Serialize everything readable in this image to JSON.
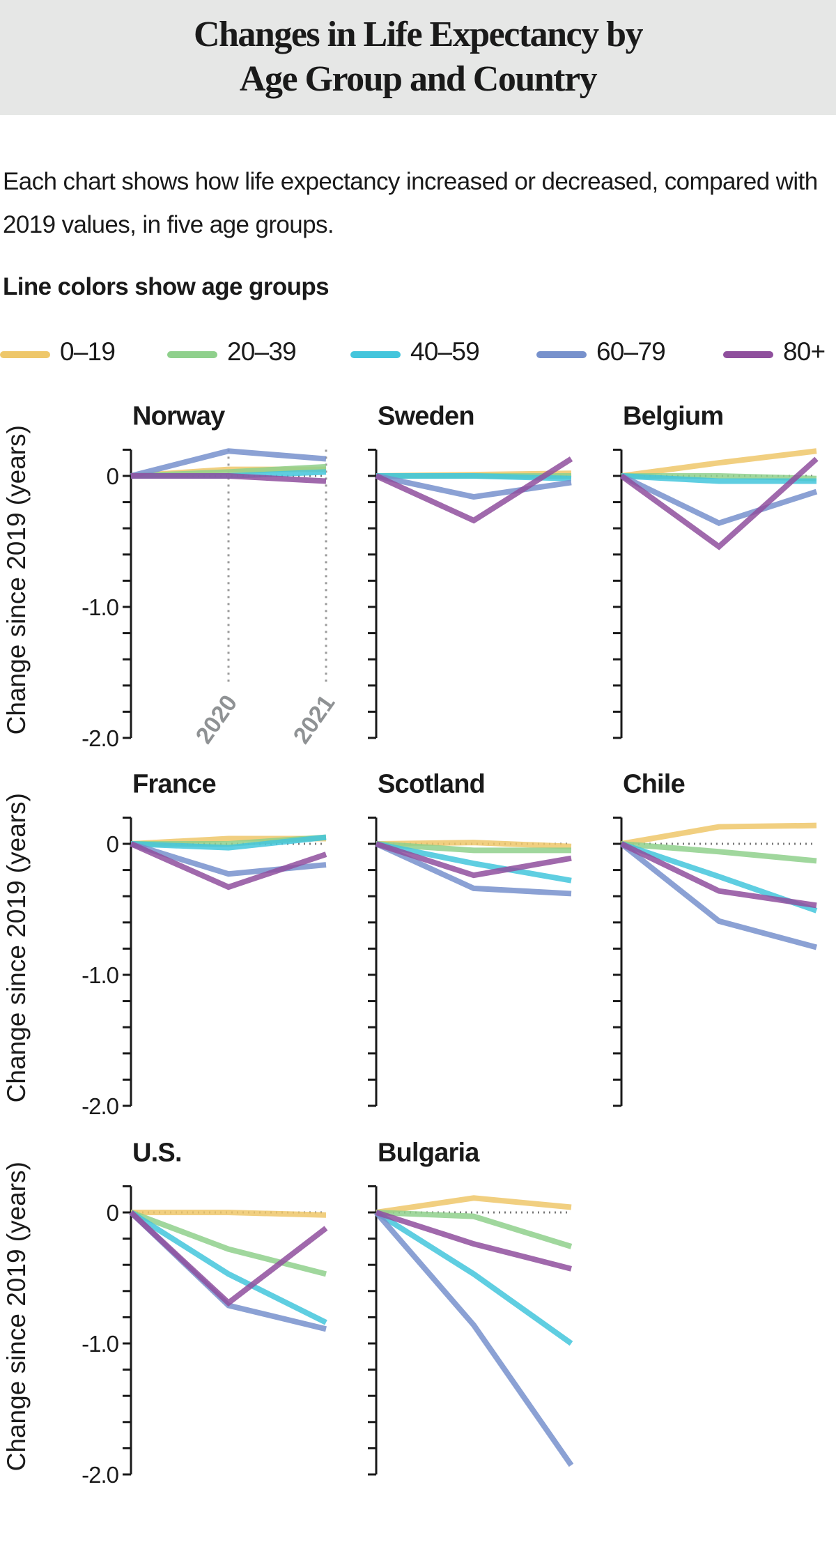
{
  "header": {
    "title_line1": "Changes in Life Expectancy by",
    "title_line2": "Age Group and Country"
  },
  "subtitle": "Each chart shows how life expectancy increased or decreased, compared with 2019 values, in five age groups.",
  "legend": {
    "heading": "Line colors show age groups",
    "items": [
      {
        "label": "0–19",
        "color": "#eec76a"
      },
      {
        "label": "20–39",
        "color": "#8fd08c"
      },
      {
        "label": "40–59",
        "color": "#43c5dc"
      },
      {
        "label": "60–79",
        "color": "#7791cc"
      },
      {
        "label": "80+",
        "color": "#8f4f9d"
      }
    ]
  },
  "chart_data": {
    "type": "line",
    "x": [
      2019,
      2020,
      2021
    ],
    "x_tick_labels": [
      "2020",
      "2021"
    ],
    "ylabel": "Change since 2019 (years)",
    "ylim": [
      -2.0,
      0.2
    ],
    "y_tick_labels": [
      "0",
      "-1.0",
      "-2.0"
    ],
    "reference_line": 0,
    "panels": [
      {
        "title": "Norway",
        "series": [
          {
            "name": "0–19",
            "values": [
              0,
              0.05,
              0.05
            ]
          },
          {
            "name": "20–39",
            "values": [
              0,
              0.03,
              0.07
            ]
          },
          {
            "name": "40–59",
            "values": [
              0,
              0.0,
              0.03
            ]
          },
          {
            "name": "60–79",
            "values": [
              0,
              0.19,
              0.13
            ]
          },
          {
            "name": "80+",
            "values": [
              0,
              0.0,
              -0.04
            ]
          }
        ]
      },
      {
        "title": "Sweden",
        "series": [
          {
            "name": "0–19",
            "values": [
              0,
              0.01,
              0.02
            ]
          },
          {
            "name": "20–39",
            "values": [
              0,
              0.0,
              0.0
            ]
          },
          {
            "name": "40–59",
            "values": [
              0,
              0.0,
              -0.02
            ]
          },
          {
            "name": "60–79",
            "values": [
              0,
              -0.16,
              -0.05
            ]
          },
          {
            "name": "80+",
            "values": [
              0,
              -0.34,
              0.13
            ]
          }
        ]
      },
      {
        "title": "Belgium",
        "series": [
          {
            "name": "0–19",
            "values": [
              0,
              0.1,
              0.19
            ]
          },
          {
            "name": "20–39",
            "values": [
              0,
              0.0,
              -0.02
            ]
          },
          {
            "name": "40–59",
            "values": [
              0,
              -0.04,
              -0.04
            ]
          },
          {
            "name": "60–79",
            "values": [
              0,
              -0.36,
              -0.12
            ]
          },
          {
            "name": "80+",
            "values": [
              0,
              -0.54,
              0.13
            ]
          }
        ]
      },
      {
        "title": "France",
        "series": [
          {
            "name": "0–19",
            "values": [
              0,
              0.04,
              0.04
            ]
          },
          {
            "name": "20–39",
            "values": [
              0,
              0.0,
              0.05
            ]
          },
          {
            "name": "40–59",
            "values": [
              0,
              -0.03,
              0.05
            ]
          },
          {
            "name": "60–79",
            "values": [
              0,
              -0.23,
              -0.16
            ]
          },
          {
            "name": "80+",
            "values": [
              0,
              -0.33,
              -0.08
            ]
          }
        ]
      },
      {
        "title": "Scotland",
        "series": [
          {
            "name": "0–19",
            "values": [
              0,
              0.01,
              -0.02
            ]
          },
          {
            "name": "20–39",
            "values": [
              0,
              -0.05,
              -0.05
            ]
          },
          {
            "name": "40–59",
            "values": [
              0,
              -0.15,
              -0.28
            ]
          },
          {
            "name": "60–79",
            "values": [
              0,
              -0.34,
              -0.38
            ]
          },
          {
            "name": "80+",
            "values": [
              0,
              -0.24,
              -0.11
            ]
          }
        ]
      },
      {
        "title": "Chile",
        "series": [
          {
            "name": "0–19",
            "values": [
              0,
              0.13,
              0.14
            ]
          },
          {
            "name": "20–39",
            "values": [
              0,
              -0.06,
              -0.13
            ]
          },
          {
            "name": "40–59",
            "values": [
              0,
              -0.25,
              -0.51
            ]
          },
          {
            "name": "60–79",
            "values": [
              0,
              -0.59,
              -0.79
            ]
          },
          {
            "name": "80+",
            "values": [
              0,
              -0.36,
              -0.47
            ]
          }
        ]
      },
      {
        "title": "U.S.",
        "series": [
          {
            "name": "0–19",
            "values": [
              0,
              0.0,
              -0.02
            ]
          },
          {
            "name": "20–39",
            "values": [
              0,
              -0.28,
              -0.47
            ]
          },
          {
            "name": "40–59",
            "values": [
              0,
              -0.47,
              -0.84
            ]
          },
          {
            "name": "60–79",
            "values": [
              0,
              -0.71,
              -0.89
            ]
          },
          {
            "name": "80+",
            "values": [
              0,
              -0.69,
              -0.12
            ]
          }
        ]
      },
      {
        "title": "Bulgaria",
        "series": [
          {
            "name": "0–19",
            "values": [
              0,
              0.11,
              0.04
            ]
          },
          {
            "name": "20–39",
            "values": [
              0,
              -0.03,
              -0.26
            ]
          },
          {
            "name": "40–59",
            "values": [
              0,
              -0.47,
              -1.0
            ]
          },
          {
            "name": "60–79",
            "values": [
              0,
              -0.86,
              -1.93
            ]
          },
          {
            "name": "80+",
            "values": [
              0,
              -0.24,
              -0.43
            ]
          }
        ]
      }
    ]
  }
}
